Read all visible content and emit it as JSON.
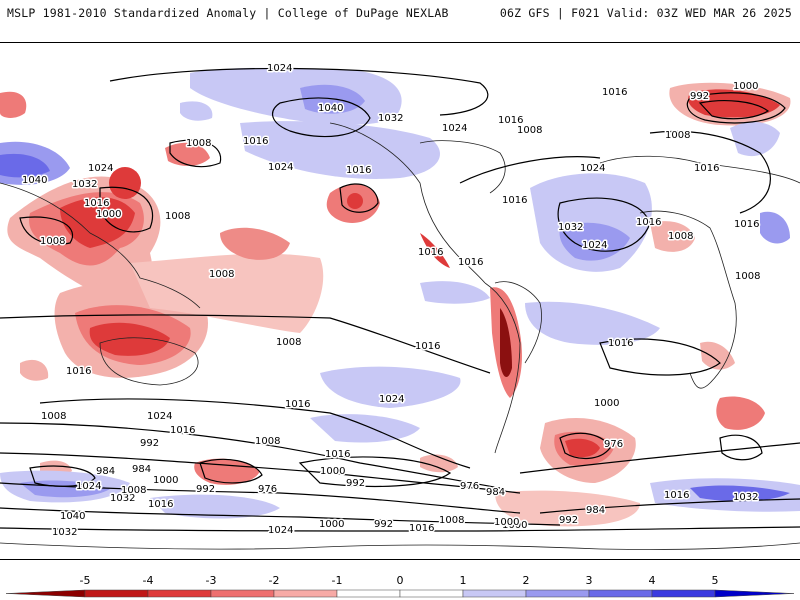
{
  "header": {
    "left_title": "MSLP 1981-2010 Standardized Anomaly | College of DuPage NEXLAB",
    "right_title": "06Z GFS | F021 Valid: 03Z WED MAR 26 2025"
  },
  "colorbar": {
    "ticks": [
      "-5",
      "-4",
      "-3",
      "-2",
      "-1",
      "0",
      "1",
      "2",
      "3",
      "4",
      "5"
    ],
    "colors": [
      "#8b0000",
      "#c01818",
      "#de3a3a",
      "#ee6f6f",
      "#f7aaa6",
      "#ffffff",
      "#ffffff",
      "#c8c8f5",
      "#9a9aef",
      "#6a6ae8",
      "#3a3ae0",
      "#0000c8"
    ]
  },
  "isobar_labels": [
    {
      "text": "1024"
    },
    {
      "text": "1040"
    },
    {
      "text": "1032"
    },
    {
      "text": "1024"
    },
    {
      "text": "1016"
    },
    {
      "text": "1008"
    },
    {
      "text": "1016"
    },
    {
      "text": "1000"
    },
    {
      "text": "992"
    },
    {
      "text": "1016"
    },
    {
      "text": "1008"
    },
    {
      "text": "1016"
    },
    {
      "text": "1008"
    },
    {
      "text": "1024"
    },
    {
      "text": "1040"
    },
    {
      "text": "1032"
    },
    {
      "text": "1016"
    },
    {
      "text": "1000"
    },
    {
      "text": "1008"
    },
    {
      "text": "1008"
    },
    {
      "text": "1024"
    },
    {
      "text": "1016"
    },
    {
      "text": "1016"
    },
    {
      "text": "1016"
    },
    {
      "text": "1024"
    },
    {
      "text": "1032"
    },
    {
      "text": "1024"
    },
    {
      "text": "1016"
    },
    {
      "text": "1016"
    },
    {
      "text": "1008"
    },
    {
      "text": "1008"
    },
    {
      "text": "1016"
    },
    {
      "text": "1008"
    },
    {
      "text": "1016"
    },
    {
      "text": "1016"
    },
    {
      "text": "1016"
    },
    {
      "text": "1016"
    },
    {
      "text": "1024"
    },
    {
      "text": "1016"
    },
    {
      "text": "1008"
    },
    {
      "text": "1000"
    },
    {
      "text": "1024"
    },
    {
      "text": "1016"
    },
    {
      "text": "1008"
    },
    {
      "text": "992"
    },
    {
      "text": "976"
    },
    {
      "text": "1016"
    },
    {
      "text": "1008"
    },
    {
      "text": "1000"
    },
    {
      "text": "992"
    },
    {
      "text": "984"
    },
    {
      "text": "984"
    },
    {
      "text": "1000"
    },
    {
      "text": "992"
    },
    {
      "text": "976"
    },
    {
      "text": "1024"
    },
    {
      "text": "1032"
    },
    {
      "text": "1008"
    },
    {
      "text": "1016"
    },
    {
      "text": "1040"
    },
    {
      "text": "1032"
    },
    {
      "text": "1024"
    },
    {
      "text": "1000"
    },
    {
      "text": "992"
    },
    {
      "text": "1016"
    },
    {
      "text": "1008"
    },
    {
      "text": "984"
    },
    {
      "text": "1000"
    },
    {
      "text": "992"
    },
    {
      "text": "984"
    },
    {
      "text": "976"
    },
    {
      "text": "1016"
    },
    {
      "text": "1032"
    },
    {
      "text": "1000"
    }
  ]
}
